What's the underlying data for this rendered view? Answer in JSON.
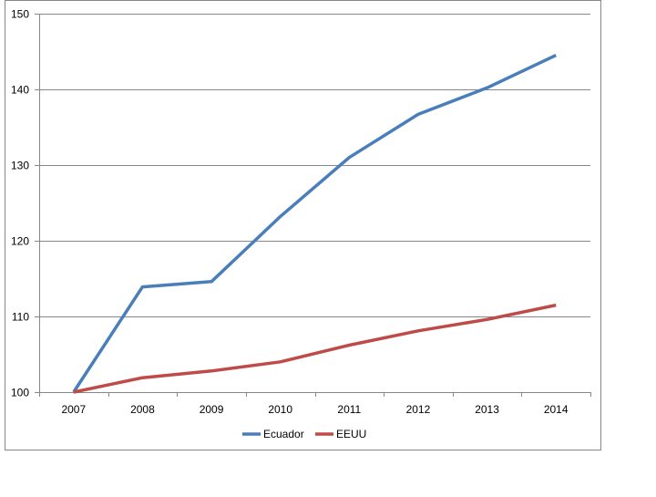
{
  "chart_data": {
    "type": "line",
    "title": "",
    "xlabel": "",
    "ylabel": "",
    "categories": [
      "2007",
      "2008",
      "2009",
      "2010",
      "2011",
      "2012",
      "2013",
      "2014"
    ],
    "series": [
      {
        "name": "Ecuador",
        "color": "#4a7ebb",
        "values": [
          100,
          113.9,
          114.6,
          123.2,
          131.0,
          136.7,
          140.2,
          144.5
        ]
      },
      {
        "name": "EEUU",
        "color": "#be4b48",
        "values": [
          100,
          101.9,
          102.8,
          104.0,
          106.2,
          108.1,
          109.6,
          111.5
        ]
      }
    ],
    "ylim": [
      100,
      150
    ],
    "yticks": [
      100,
      110,
      120,
      130,
      140,
      150
    ],
    "grid": true,
    "legend_position": "bottom",
    "axis_color": "#878787",
    "grid_color": "#878787"
  }
}
